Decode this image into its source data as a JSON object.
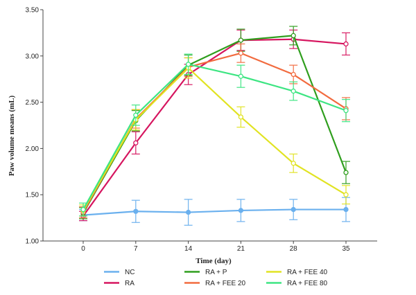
{
  "chart_data": {
    "type": "line",
    "x": [
      0,
      7,
      14,
      21,
      28,
      35
    ],
    "xlabel": "Time (day)",
    "ylabel": "Paw volume means (mL)",
    "ylim": [
      1.0,
      3.5
    ],
    "yticks": [
      "1.00",
      "1.50",
      "2.00",
      "2.50",
      "3.00",
      "3.50"
    ],
    "xticks": [
      "0",
      "7",
      "14",
      "21",
      "28",
      "35"
    ],
    "grid": false,
    "legend_position": "bottom",
    "series": [
      {
        "name": "NC",
        "color": "#6ab0ee",
        "marker": "filled",
        "values": [
          1.28,
          1.32,
          1.31,
          1.33,
          1.34,
          1.34
        ],
        "error": [
          0.06,
          0.12,
          0.14,
          0.12,
          0.11,
          0.13
        ]
      },
      {
        "name": "RA",
        "color": "#d6155f",
        "marker": "open",
        "values": [
          1.27,
          2.06,
          2.8,
          3.17,
          3.18,
          3.13
        ],
        "error": [
          0.05,
          0.12,
          0.11,
          0.11,
          0.1,
          0.12
        ]
      },
      {
        "name": "RA + P",
        "color": "#2f9e1d",
        "marker": "open",
        "values": [
          1.3,
          2.3,
          2.9,
          3.17,
          3.22,
          1.74
        ],
        "error": [
          0.06,
          0.11,
          0.11,
          0.12,
          0.1,
          0.12
        ]
      },
      {
        "name": "RA + FEE 20",
        "color": "#f26b3f",
        "marker": "open",
        "values": [
          1.31,
          2.32,
          2.88,
          3.03,
          2.8,
          2.43
        ],
        "error": [
          0.06,
          0.1,
          0.1,
          0.1,
          0.1,
          0.12
        ]
      },
      {
        "name": "RA + FEE 40",
        "color": "#e1e322",
        "marker": "open",
        "values": [
          1.33,
          2.31,
          2.87,
          2.34,
          1.84,
          1.5
        ],
        "error": [
          0.06,
          0.11,
          0.11,
          0.11,
          0.1,
          0.1
        ]
      },
      {
        "name": "RA + FEE 80",
        "color": "#3de582",
        "marker": "open",
        "values": [
          1.34,
          2.36,
          2.91,
          2.78,
          2.62,
          2.41
        ],
        "error": [
          0.07,
          0.11,
          0.11,
          0.12,
          0.1,
          0.12
        ]
      }
    ]
  }
}
